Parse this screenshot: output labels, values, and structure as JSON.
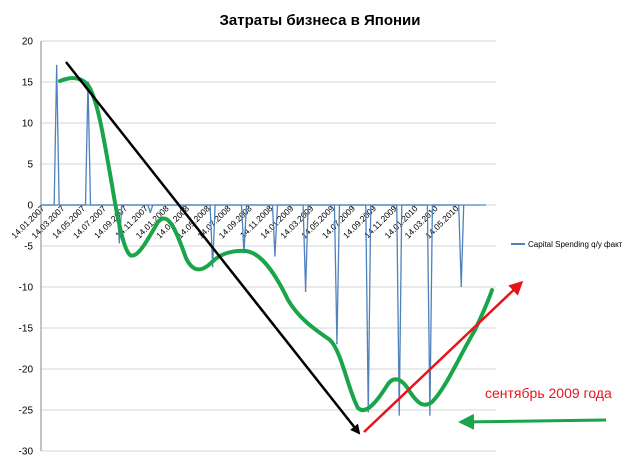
{
  "chart_data": {
    "type": "line",
    "title": "Затраты бизнеса в Японии",
    "xlabel": "",
    "ylabel": "",
    "ylim": [
      -30,
      20
    ],
    "yticks": [
      20,
      15,
      10,
      5,
      0,
      -5,
      -10,
      -15,
      -20,
      -25,
      -30
    ],
    "x_tick_labels": [
      "14.01.2007",
      "14.03.2007",
      "14.05.2007",
      "14.07.2007",
      "14.09.2007",
      "14.11.2007",
      "14.01.2008",
      "14.03.2008",
      "14.05.2008",
      "14.07.2008",
      "14.09.2008",
      "14.11.2008",
      "14.01.2009",
      "14.03.2009",
      "14.05.2009",
      "14.07.2009",
      "14.09.2009",
      "14.11.2009",
      "14.01.2010",
      "14.03.2010",
      "14.05.2010"
    ],
    "grid": "horizontal",
    "legend_position": "right",
    "series": [
      {
        "name": "Capital Spending q/y факт",
        "color": "#4f81bd",
        "spikes": [
          {
            "date": "2007-03-01",
            "value": 17
          },
          {
            "date": "2007-06-01",
            "value": 15
          },
          {
            "date": "2007-09-01",
            "value": -4.6
          },
          {
            "date": "2007-12-01",
            "value": -0.9
          },
          {
            "date": "2008-03-01",
            "value": -0.6
          },
          {
            "date": "2008-06-01",
            "value": -7.5
          },
          {
            "date": "2008-09-01",
            "value": -5.8
          },
          {
            "date": "2008-12-01",
            "value": -6.2
          },
          {
            "date": "2009-03-01",
            "value": -10.5
          },
          {
            "date": "2009-06-01",
            "value": -16.9
          },
          {
            "date": "2009-09-01",
            "value": -25.2
          },
          {
            "date": "2009-12-01",
            "value": -25.6
          },
          {
            "date": "2010-03-01",
            "value": -25.6
          },
          {
            "date": "2010-06-01",
            "value": -9.9
          }
        ]
      }
    ],
    "annotations": [
      {
        "text": "сентябрь 2009 года",
        "color": "#e8141b"
      }
    ],
    "overlay_colors": {
      "trend_line": "#1aa54a",
      "down_arrow": "#000000",
      "up_arrow": "#e8141b",
      "pointer_arrow": "#1aa54a"
    }
  }
}
